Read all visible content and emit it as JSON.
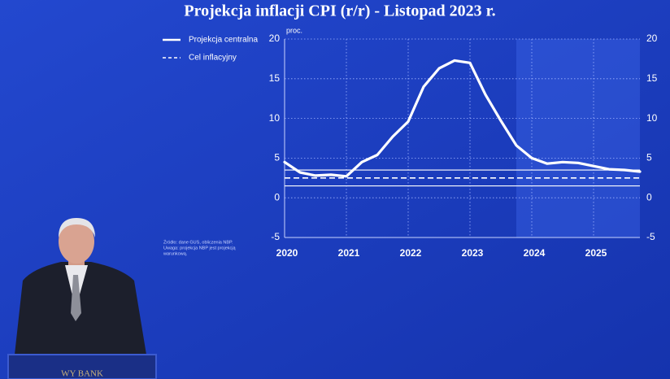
{
  "chart_data": {
    "type": "line",
    "title": "Projekcja inflacji CPI (r/r) - Listopad 2023 r.",
    "y_label": "proc.",
    "x": [
      2020,
      2020.25,
      2020.5,
      2020.75,
      2021,
      2021.25,
      2021.5,
      2021.75,
      2022,
      2022.25,
      2022.5,
      2022.75,
      2023,
      2023.25,
      2023.5,
      2023.75,
      2024,
      2024.25,
      2024.5,
      2024.75,
      2025,
      2025.25,
      2025.5,
      2025.75
    ],
    "series": [
      {
        "name": "Projekcja centralna",
        "color": "#ffffff",
        "values": [
          4.5,
          3.2,
          2.8,
          2.9,
          2.7,
          4.5,
          5.4,
          7.7,
          9.6,
          14.0,
          16.3,
          17.3,
          17.0,
          13.0,
          9.7,
          6.6,
          5.0,
          4.3,
          4.5,
          4.4,
          4.0,
          3.6,
          3.5,
          3.3
        ]
      }
    ],
    "reference_lines": [
      {
        "name": "Cel inflacyjny",
        "value": 2.5,
        "dash": true
      },
      {
        "value": 1.5,
        "dash": false
      },
      {
        "value": 3.5,
        "dash": false
      }
    ],
    "projection_start": 2023.75,
    "xlim": [
      2020,
      2025.75
    ],
    "xticks": [
      2020,
      2021,
      2022,
      2023,
      2024,
      2025
    ],
    "ylim": [
      -5,
      20
    ],
    "yticks": [
      -5,
      0,
      5,
      10,
      15,
      20
    ],
    "grid": true,
    "right_axis": true,
    "notes": [
      "Źródło: dane GUS, obliczenia NBP.",
      "Uwaga: projekcja NBP jest projekcją",
      "warunkową."
    ]
  },
  "podium": {
    "label": "WY BANK"
  }
}
